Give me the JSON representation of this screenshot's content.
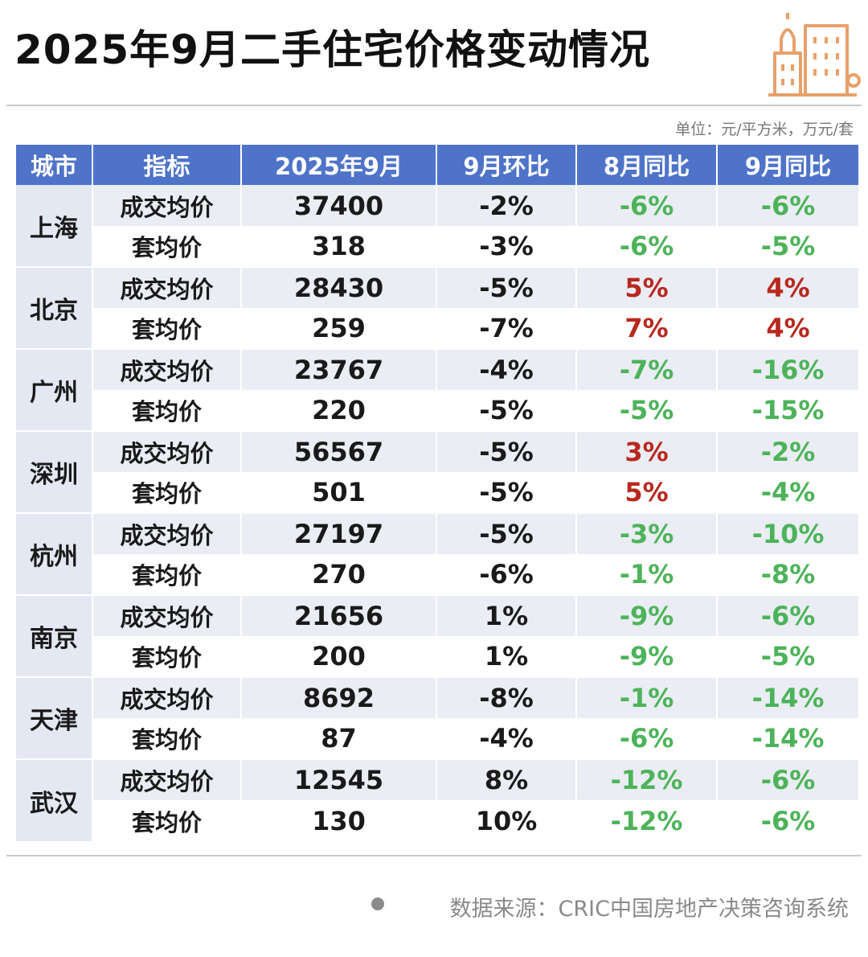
{
  "title": "2025年9月二手住宅价格变动情况",
  "unit_note": "单位：元/平方米，万元/套",
  "source_note": "数据来源：CRIC中国房地产决策咨询系统",
  "colors": {
    "header_bg": "#4e73c8",
    "negative": "#4db35a",
    "positive": "#b8281e",
    "stripe": "#eaedf3",
    "logo": "#e8a06a"
  },
  "chart_data": {
    "type": "table",
    "columns": [
      "城市",
      "指标",
      "2025年9月",
      "9月环比",
      "8月同比",
      "9月同比"
    ],
    "groups": [
      {
        "city": "上海",
        "rows": [
          {
            "metric": "成交均价",
            "value": "37400",
            "mom_sep": "-2%",
            "yoy_aug": "-6%",
            "yoy_sep": "-6%"
          },
          {
            "metric": "套均价",
            "value": "318",
            "mom_sep": "-3%",
            "yoy_aug": "-6%",
            "yoy_sep": "-5%"
          }
        ]
      },
      {
        "city": "北京",
        "rows": [
          {
            "metric": "成交均价",
            "value": "28430",
            "mom_sep": "-5%",
            "yoy_aug": "5%",
            "yoy_sep": "4%"
          },
          {
            "metric": "套均价",
            "value": "259",
            "mom_sep": "-7%",
            "yoy_aug": "7%",
            "yoy_sep": "4%"
          }
        ]
      },
      {
        "city": "广州",
        "rows": [
          {
            "metric": "成交均价",
            "value": "23767",
            "mom_sep": "-4%",
            "yoy_aug": "-7%",
            "yoy_sep": "-16%"
          },
          {
            "metric": "套均价",
            "value": "220",
            "mom_sep": "-5%",
            "yoy_aug": "-5%",
            "yoy_sep": "-15%"
          }
        ]
      },
      {
        "city": "深圳",
        "rows": [
          {
            "metric": "成交均价",
            "value": "56567",
            "mom_sep": "-5%",
            "yoy_aug": "3%",
            "yoy_sep": "-2%"
          },
          {
            "metric": "套均价",
            "value": "501",
            "mom_sep": "-5%",
            "yoy_aug": "5%",
            "yoy_sep": "-4%"
          }
        ]
      },
      {
        "city": "杭州",
        "rows": [
          {
            "metric": "成交均价",
            "value": "27197",
            "mom_sep": "-5%",
            "yoy_aug": "-3%",
            "yoy_sep": "-10%"
          },
          {
            "metric": "套均价",
            "value": "270",
            "mom_sep": "-6%",
            "yoy_aug": "-1%",
            "yoy_sep": "-8%"
          }
        ]
      },
      {
        "city": "南京",
        "rows": [
          {
            "metric": "成交均价",
            "value": "21656",
            "mom_sep": "1%",
            "yoy_aug": "-9%",
            "yoy_sep": "-6%"
          },
          {
            "metric": "套均价",
            "value": "200",
            "mom_sep": "1%",
            "yoy_aug": "-9%",
            "yoy_sep": "-5%"
          }
        ]
      },
      {
        "city": "天津",
        "rows": [
          {
            "metric": "成交均价",
            "value": "8692",
            "mom_sep": "-8%",
            "yoy_aug": "-1%",
            "yoy_sep": "-14%"
          },
          {
            "metric": "套均价",
            "value": "87",
            "mom_sep": "-4%",
            "yoy_aug": "-6%",
            "yoy_sep": "-14%"
          }
        ]
      },
      {
        "city": "武汉",
        "rows": [
          {
            "metric": "成交均价",
            "value": "12545",
            "mom_sep": "8%",
            "yoy_aug": "-12%",
            "yoy_sep": "-6%"
          },
          {
            "metric": "套均价",
            "value": "130",
            "mom_sep": "10%",
            "yoy_aug": "-12%",
            "yoy_sep": "-6%"
          }
        ]
      }
    ]
  }
}
